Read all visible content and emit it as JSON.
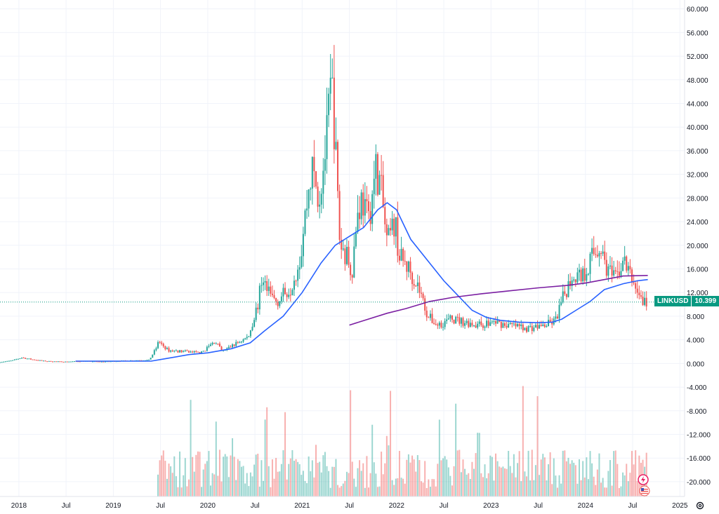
{
  "chart_data": {
    "type": "candlestick",
    "symbol": "LINKUSD",
    "last_price": "10.399",
    "y_ticks": [
      "60.000",
      "56.000",
      "52.000",
      "48.000",
      "44.000",
      "40.000",
      "36.000",
      "32.000",
      "28.000",
      "24.000",
      "20.000",
      "16.000",
      "12.000",
      "8.000",
      "4.000",
      "0.000",
      "-4.000",
      "-8.000",
      "-12.000",
      "-16.000",
      "-20.000"
    ],
    "y_tick_values": [
      60,
      56,
      52,
      48,
      44,
      40,
      36,
      32,
      28,
      24,
      20,
      16,
      12,
      8,
      4,
      0,
      -4,
      -8,
      -12,
      -16,
      -20
    ],
    "ylim": [
      -22.5,
      61.5
    ],
    "x_ticks": [
      {
        "label": "2018",
        "t": 2018.0
      },
      {
        "label": "Jul",
        "t": 2018.5
      },
      {
        "label": "2019",
        "t": 2019.0
      },
      {
        "label": "Jul",
        "t": 2019.5
      },
      {
        "label": "2020",
        "t": 2020.0
      },
      {
        "label": "Jul",
        "t": 2020.5
      },
      {
        "label": "2021",
        "t": 2021.0
      },
      {
        "label": "Jul",
        "t": 2021.5
      },
      {
        "label": "2022",
        "t": 2022.0
      },
      {
        "label": "Jul",
        "t": 2022.5
      },
      {
        "label": "2023",
        "t": 2023.0
      },
      {
        "label": "Jul",
        "t": 2023.5
      },
      {
        "label": "2024",
        "t": 2024.0
      },
      {
        "label": "Jul",
        "t": 2024.5
      },
      {
        "label": "2025",
        "t": 2025.0
      }
    ],
    "xlim": [
      2017.8,
      2025.05
    ],
    "grid": true,
    "price_path": [
      [
        2017.8,
        0.2
      ],
      [
        2017.95,
        0.5
      ],
      [
        2018.05,
        1.0
      ],
      [
        2018.15,
        0.7
      ],
      [
        2018.3,
        0.4
      ],
      [
        2018.5,
        0.3
      ],
      [
        2018.7,
        0.4
      ],
      [
        2018.9,
        0.3
      ],
      [
        2019.2,
        0.5
      ],
      [
        2019.4,
        0.6
      ],
      [
        2019.47,
        2.5
      ],
      [
        2019.5,
        3.7
      ],
      [
        2019.6,
        2.2
      ],
      [
        2019.8,
        2.0
      ],
      [
        2019.95,
        1.8
      ],
      [
        2020.1,
        3.8
      ],
      [
        2020.17,
        2.0
      ],
      [
        2020.3,
        3.2
      ],
      [
        2020.45,
        4.5
      ],
      [
        2020.55,
        10.0
      ],
      [
        2020.6,
        15.0
      ],
      [
        2020.65,
        12.0
      ],
      [
        2020.75,
        10.5
      ],
      [
        2020.9,
        13.0
      ],
      [
        2021.0,
        18.0
      ],
      [
        2021.05,
        25.0
      ],
      [
        2021.12,
        33.0
      ],
      [
        2021.2,
        28.0
      ],
      [
        2021.28,
        38.0
      ],
      [
        2021.33,
        48.0
      ],
      [
        2021.36,
        40.0
      ],
      [
        2021.42,
        20.0
      ],
      [
        2021.5,
        18.0
      ],
      [
        2021.55,
        16.0
      ],
      [
        2021.6,
        25.0
      ],
      [
        2021.65,
        28.0
      ],
      [
        2021.72,
        24.0
      ],
      [
        2021.8,
        33.0
      ],
      [
        2021.85,
        30.0
      ],
      [
        2021.92,
        20.0
      ],
      [
        2022.0,
        24.0
      ],
      [
        2022.05,
        18.0
      ],
      [
        2022.15,
        16.0
      ],
      [
        2022.25,
        13.0
      ],
      [
        2022.35,
        8.0
      ],
      [
        2022.45,
        6.5
      ],
      [
        2022.6,
        7.5
      ],
      [
        2022.75,
        7.0
      ],
      [
        2022.9,
        6.5
      ],
      [
        2023.05,
        7.0
      ],
      [
        2023.2,
        6.5
      ],
      [
        2023.4,
        6.0
      ],
      [
        2023.5,
        6.2
      ],
      [
        2023.6,
        6.5
      ],
      [
        2023.7,
        7.2
      ],
      [
        2023.78,
        11.0
      ],
      [
        2023.88,
        15.0
      ],
      [
        2024.0,
        15.0
      ],
      [
        2024.08,
        18.0
      ],
      [
        2024.17,
        20.0
      ],
      [
        2024.25,
        16.0
      ],
      [
        2024.33,
        14.0
      ],
      [
        2024.42,
        17.5
      ],
      [
        2024.5,
        14.5
      ],
      [
        2024.55,
        13.0
      ],
      [
        2024.62,
        10.5
      ],
      [
        2024.66,
        10.4
      ]
    ],
    "ma_fast": [
      [
        2018.6,
        0.4
      ],
      [
        2019.0,
        0.4
      ],
      [
        2019.4,
        0.4
      ],
      [
        2019.55,
        0.8
      ],
      [
        2019.8,
        1.5
      ],
      [
        2020.0,
        1.8
      ],
      [
        2020.25,
        2.5
      ],
      [
        2020.45,
        3.5
      ],
      [
        2020.6,
        5.5
      ],
      [
        2020.8,
        8.0
      ],
      [
        2021.0,
        12.0
      ],
      [
        2021.2,
        17.0
      ],
      [
        2021.35,
        20.0
      ],
      [
        2021.5,
        21.5
      ],
      [
        2021.65,
        23.0
      ],
      [
        2021.8,
        26.0
      ],
      [
        2021.9,
        27.2
      ],
      [
        2022.0,
        26.0
      ],
      [
        2022.15,
        21.0
      ],
      [
        2022.35,
        17.0
      ],
      [
        2022.5,
        14.0
      ],
      [
        2022.65,
        11.5
      ],
      [
        2022.8,
        9.0
      ],
      [
        2022.95,
        7.8
      ],
      [
        2023.1,
        7.3
      ],
      [
        2023.3,
        7.0
      ],
      [
        2023.5,
        6.9
      ],
      [
        2023.65,
        7.0
      ],
      [
        2023.75,
        7.5
      ],
      [
        2023.9,
        9.0
      ],
      [
        2024.05,
        10.5
      ],
      [
        2024.2,
        12.5
      ],
      [
        2024.4,
        13.5
      ],
      [
        2024.55,
        14.0
      ],
      [
        2024.66,
        14.2
      ]
    ],
    "ma_slow": [
      [
        2021.5,
        6.5
      ],
      [
        2021.7,
        7.5
      ],
      [
        2021.9,
        8.5
      ],
      [
        2022.1,
        9.3
      ],
      [
        2022.35,
        10.5
      ],
      [
        2022.6,
        11.2
      ],
      [
        2022.9,
        11.8
      ],
      [
        2023.2,
        12.3
      ],
      [
        2023.5,
        12.8
      ],
      [
        2023.8,
        13.2
      ],
      [
        2024.0,
        13.6
      ],
      [
        2024.2,
        14.2
      ],
      [
        2024.4,
        14.8
      ],
      [
        2024.66,
        14.9
      ]
    ],
    "volume_start": 2019.47,
    "colors": {
      "up": "#26a69a",
      "down": "#ef5350",
      "ma_fast": "#2962ff",
      "ma_slow": "#7b1fa2",
      "grid": "#f0f3fa",
      "text": "#131722",
      "price_line": "#089981"
    }
  },
  "icons": {
    "bottom_right": "settings-gear-icon",
    "indicators": [
      "lightning-badge-icon",
      "us-flag-badge-icon"
    ]
  }
}
